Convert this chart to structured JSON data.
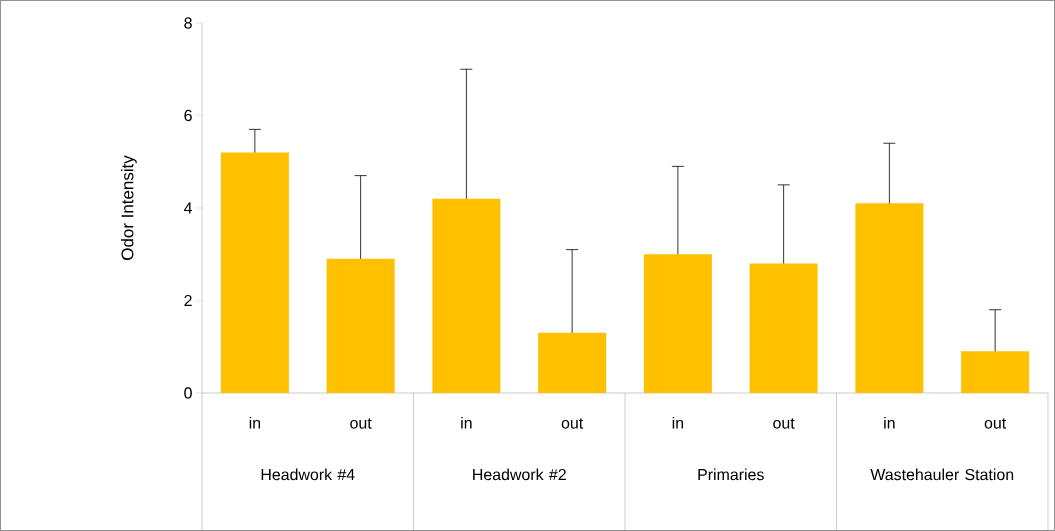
{
  "chart_data": {
    "type": "bar",
    "ylabel": "Odor Intensity",
    "color": "#ffc000",
    "ylim": [
      0,
      8
    ],
    "yticks": [
      0,
      2,
      4,
      6,
      8
    ],
    "categories": [
      "in",
      "out",
      "in",
      "out",
      "in",
      "out",
      "in",
      "out"
    ],
    "values": [
      5.2,
      2.9,
      4.2,
      1.3,
      3.0,
      2.8,
      4.1,
      0.9
    ],
    "errors": [
      [
        5.2,
        5.7
      ],
      [
        2.9,
        4.7
      ],
      [
        4.2,
        7.0
      ],
      [
        1.3,
        3.1
      ],
      [
        3.0,
        4.9
      ],
      [
        2.8,
        4.5
      ],
      [
        4.1,
        5.4
      ],
      [
        0.9,
        1.8
      ]
    ],
    "annotations": [
      "Headwork #4",
      "Headwork #2",
      "Primaries",
      "Wastehauler Station"
    ]
  }
}
